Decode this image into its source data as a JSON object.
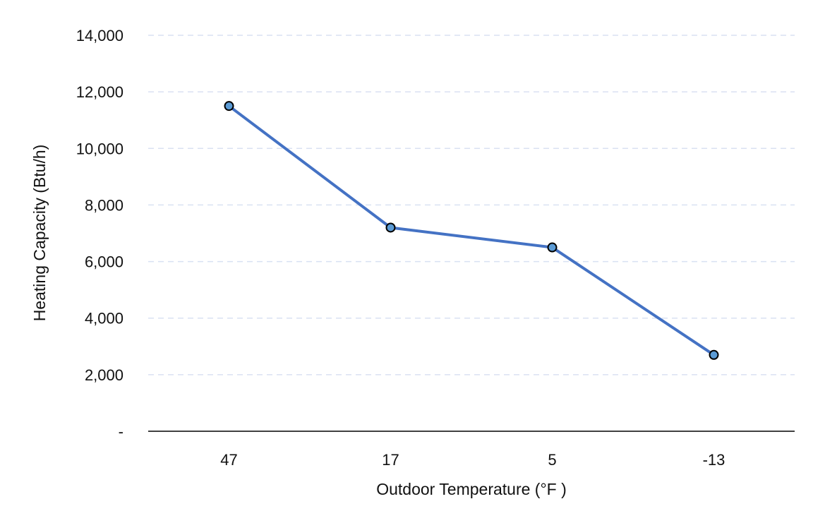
{
  "chart_data": {
    "type": "line",
    "title": "",
    "xlabel": "Outdoor Temperature (°F )",
    "ylabel": "Heating Capacity (Btu/h)",
    "categories": [
      "47",
      "17",
      "5",
      "-13"
    ],
    "series": [
      {
        "name": "Heating Capacity",
        "values": [
          11500,
          7200,
          6500,
          2700
        ],
        "color": "#4472C4",
        "marker_color": "#5B9BD5"
      }
    ],
    "ylim": [
      0,
      14000
    ],
    "yticks": [
      0,
      2000,
      4000,
      6000,
      8000,
      10000,
      12000,
      14000
    ],
    "ytick_labels": [
      "-",
      "2,000",
      "4,000",
      "6,000",
      "8,000",
      "10,000",
      "12,000",
      "14,000"
    ],
    "grid": true,
    "gridline_color": "#D9E1F2"
  }
}
